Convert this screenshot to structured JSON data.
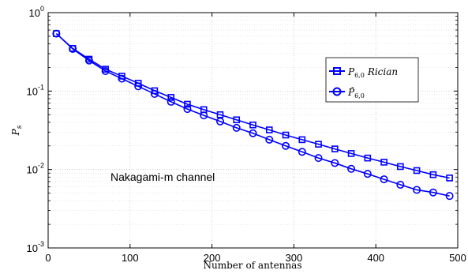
{
  "chart_data": {
    "type": "line",
    "title": "",
    "xlabel": "Number of antennas",
    "ylabel": "P",
    "ylabel_sub": "s",
    "xlim": [
      0,
      500
    ],
    "ylim": [
      0.001,
      1
    ],
    "yscale": "log",
    "grid": true,
    "xticks": [
      0,
      100,
      200,
      300,
      400,
      500
    ],
    "xtick_labels": [
      "0",
      "100",
      "200",
      "300",
      "400",
      "500"
    ],
    "yticks": [
      {
        "value": 1,
        "base": "10",
        "exp": "0"
      },
      {
        "value": 0.1,
        "base": "10",
        "exp": "-1"
      },
      {
        "value": 0.01,
        "base": "10",
        "exp": "-2"
      },
      {
        "value": 0.001,
        "base": "10",
        "exp": "-3"
      }
    ],
    "annotation": "Nakagami-m channel",
    "legend_position": "center-right",
    "x": [
      10,
      30,
      50,
      70,
      90,
      110,
      130,
      150,
      170,
      190,
      210,
      230,
      250,
      270,
      290,
      310,
      330,
      350,
      370,
      390,
      410,
      430,
      450,
      470,
      490
    ],
    "series": [
      {
        "name": "P",
        "name_sub": "6,0",
        "name_suffix": "Rician",
        "marker": "square",
        "color": "#0000ff",
        "values": [
          0.54,
          0.35,
          0.255,
          0.19,
          0.155,
          0.126,
          0.101,
          0.083,
          0.068,
          0.058,
          0.05,
          0.043,
          0.037,
          0.032,
          0.0275,
          0.024,
          0.021,
          0.0183,
          0.016,
          0.014,
          0.0124,
          0.0109,
          0.0097,
          0.0086,
          0.0078
        ]
      },
      {
        "name": "P̂",
        "name_sub": "6,0",
        "name_suffix": "",
        "marker": "circle",
        "color": "#0000ff",
        "values": [
          0.54,
          0.345,
          0.245,
          0.18,
          0.144,
          0.115,
          0.092,
          0.073,
          0.059,
          0.049,
          0.041,
          0.034,
          0.029,
          0.024,
          0.02,
          0.0168,
          0.014,
          0.0121,
          0.0102,
          0.0088,
          0.0075,
          0.0064,
          0.0055,
          0.0051,
          0.0046
        ]
      }
    ]
  }
}
